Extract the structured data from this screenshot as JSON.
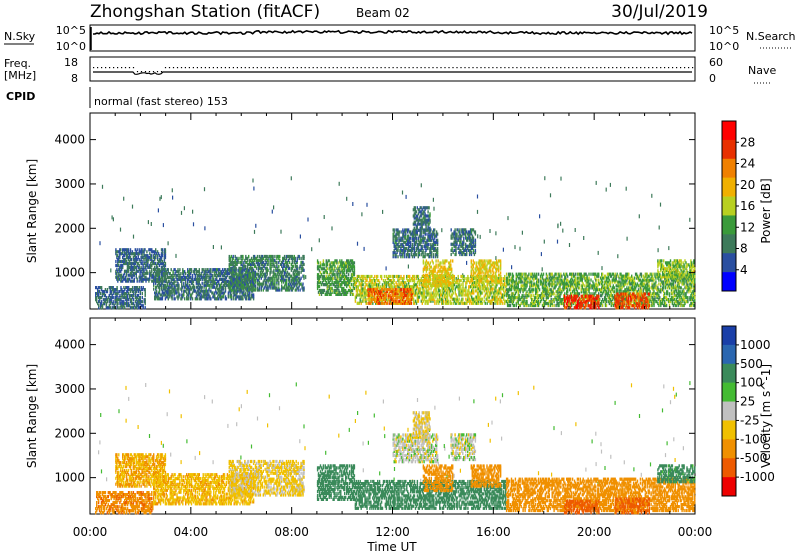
{
  "header": {
    "title": "Zhongshan Station (fitACF)",
    "beam": "Beam 02",
    "date": "30/Jul/2019"
  },
  "panels": {
    "nsky": {
      "label": "N.Sky",
      "ticks": [
        "10^5",
        "10^0"
      ],
      "right_label": "N.Search",
      "right_ticks": [
        "10^5",
        "10^0"
      ]
    },
    "freq": {
      "label_line1": "Freq.",
      "label_line2": "[MHz]",
      "ticks": [
        "18",
        "8"
      ],
      "right_label": "Nave",
      "right_ticks": [
        "60",
        "0"
      ]
    },
    "cpid": {
      "label": "CPID",
      "text": "normal (fast stereo) 153"
    }
  },
  "colors": {
    "power_scale": [
      "#0000ff",
      "#2a4fa0",
      "#3d7a5a",
      "#3a9a3a",
      "#b8d020",
      "#f0b000",
      "#f08000",
      "#e83000",
      "#ff0000"
    ],
    "velocity_scale": [
      "#1a3fa8",
      "#2a66b0",
      "#3a8a5a",
      "#44bb33",
      "#c0c0c0",
      "#f0c000",
      "#f09000",
      "#ee5a00",
      "#ee0000"
    ]
  },
  "chart_data": [
    {
      "type": "heatmap",
      "name": "power",
      "xlabel": "",
      "ylabel": "Slant Range [km]",
      "x_ticks": [
        "00:00",
        "04:00",
        "08:00",
        "12:00",
        "16:00",
        "20:00",
        "00:00"
      ],
      "y_ticks": [
        1000,
        2000,
        3000,
        4000
      ],
      "xlim": [
        0,
        24
      ],
      "ylim": [
        180,
        4600
      ],
      "colorbar": {
        "label": "Power [dB]",
        "ticks": [
          4,
          8,
          12,
          16,
          20,
          24,
          28
        ],
        "range": [
          0,
          32
        ]
      },
      "regions": [
        {
          "t0": 0.2,
          "t1": 2.2,
          "r0": 200,
          "r1": 700,
          "level": 7
        },
        {
          "t0": 1.0,
          "t1": 3.0,
          "r0": 800,
          "r1": 1550,
          "level": 7
        },
        {
          "t0": 2.5,
          "t1": 6.5,
          "r0": 400,
          "r1": 1100,
          "level": 8
        },
        {
          "t0": 5.5,
          "t1": 8.5,
          "r0": 600,
          "r1": 1400,
          "level": 9
        },
        {
          "t0": 9.0,
          "t1": 10.5,
          "r0": 500,
          "r1": 1300,
          "level": 12
        },
        {
          "t0": 10.5,
          "t1": 16.5,
          "r0": 300,
          "r1": 950,
          "level": 16
        },
        {
          "t0": 11.0,
          "t1": 12.8,
          "r0": 300,
          "r1": 650,
          "level": 24
        },
        {
          "t0": 12.0,
          "t1": 13.8,
          "r0": 1350,
          "r1": 2000,
          "level": 8
        },
        {
          "t0": 12.8,
          "t1": 13.5,
          "r0": 1900,
          "r1": 2500,
          "level": 8
        },
        {
          "t0": 14.3,
          "t1": 15.3,
          "r0": 1400,
          "r1": 2000,
          "level": 8
        },
        {
          "t0": 13.2,
          "t1": 14.4,
          "r0": 700,
          "r1": 1300,
          "level": 18
        },
        {
          "t0": 15.1,
          "t1": 16.3,
          "r0": 800,
          "r1": 1300,
          "level": 18
        },
        {
          "t0": 16.5,
          "t1": 24.0,
          "r0": 250,
          "r1": 1000,
          "level": 13
        },
        {
          "t0": 18.8,
          "t1": 20.2,
          "r0": 200,
          "r1": 500,
          "level": 27
        },
        {
          "t0": 20.8,
          "t1": 22.2,
          "r0": 200,
          "r1": 550,
          "level": 26
        },
        {
          "t0": 22.5,
          "t1": 24.0,
          "r0": 900,
          "r1": 1300,
          "level": 15
        }
      ]
    },
    {
      "type": "heatmap",
      "name": "velocity",
      "xlabel": "Time UT",
      "ylabel": "Slant Range [km]",
      "x_ticks": [
        "00:00",
        "04:00",
        "08:00",
        "12:00",
        "16:00",
        "20:00",
        "00:00"
      ],
      "y_ticks": [
        1000,
        2000,
        3000,
        4000
      ],
      "xlim": [
        0,
        24
      ],
      "ylim": [
        180,
        4600
      ],
      "colorbar": {
        "label": "Velocity [m s^-1]",
        "ticks": [
          1000,
          500,
          100,
          25,
          -25,
          -100,
          -500,
          -1000
        ]
      },
      "regions": [
        {
          "t0": 0.2,
          "t1": 2.5,
          "r0": 200,
          "r1": 700,
          "level": -400
        },
        {
          "t0": 1.0,
          "t1": 3.0,
          "r0": 800,
          "r1": 1550,
          "level": -100
        },
        {
          "t0": 2.5,
          "t1": 6.5,
          "r0": 400,
          "r1": 1100,
          "level": -80
        },
        {
          "t0": 5.5,
          "t1": 8.5,
          "r0": 600,
          "r1": 1400,
          "level": -40
        },
        {
          "t0": 9.0,
          "t1": 10.5,
          "r0": 500,
          "r1": 1300,
          "level": 200
        },
        {
          "t0": 10.5,
          "t1": 16.5,
          "r0": 300,
          "r1": 950,
          "level": 200
        },
        {
          "t0": 12.0,
          "t1": 13.8,
          "r0": 1350,
          "r1": 2000,
          "level": 0
        },
        {
          "t0": 12.8,
          "t1": 13.5,
          "r0": 1900,
          "r1": 2500,
          "level": -30
        },
        {
          "t0": 14.3,
          "t1": 15.3,
          "r0": 1400,
          "r1": 2000,
          "level": 0
        },
        {
          "t0": 13.2,
          "t1": 14.4,
          "r0": 700,
          "r1": 1300,
          "level": -200
        },
        {
          "t0": 15.1,
          "t1": 16.3,
          "r0": 800,
          "r1": 1300,
          "level": -300
        },
        {
          "t0": 16.5,
          "t1": 24.0,
          "r0": 250,
          "r1": 1000,
          "level": -300
        },
        {
          "t0": 18.8,
          "t1": 20.2,
          "r0": 200,
          "r1": 500,
          "level": -700
        },
        {
          "t0": 20.8,
          "t1": 22.2,
          "r0": 200,
          "r1": 550,
          "level": -600
        },
        {
          "t0": 22.5,
          "t1": 24.0,
          "r0": 900,
          "r1": 1300,
          "level": 150
        }
      ]
    }
  ]
}
